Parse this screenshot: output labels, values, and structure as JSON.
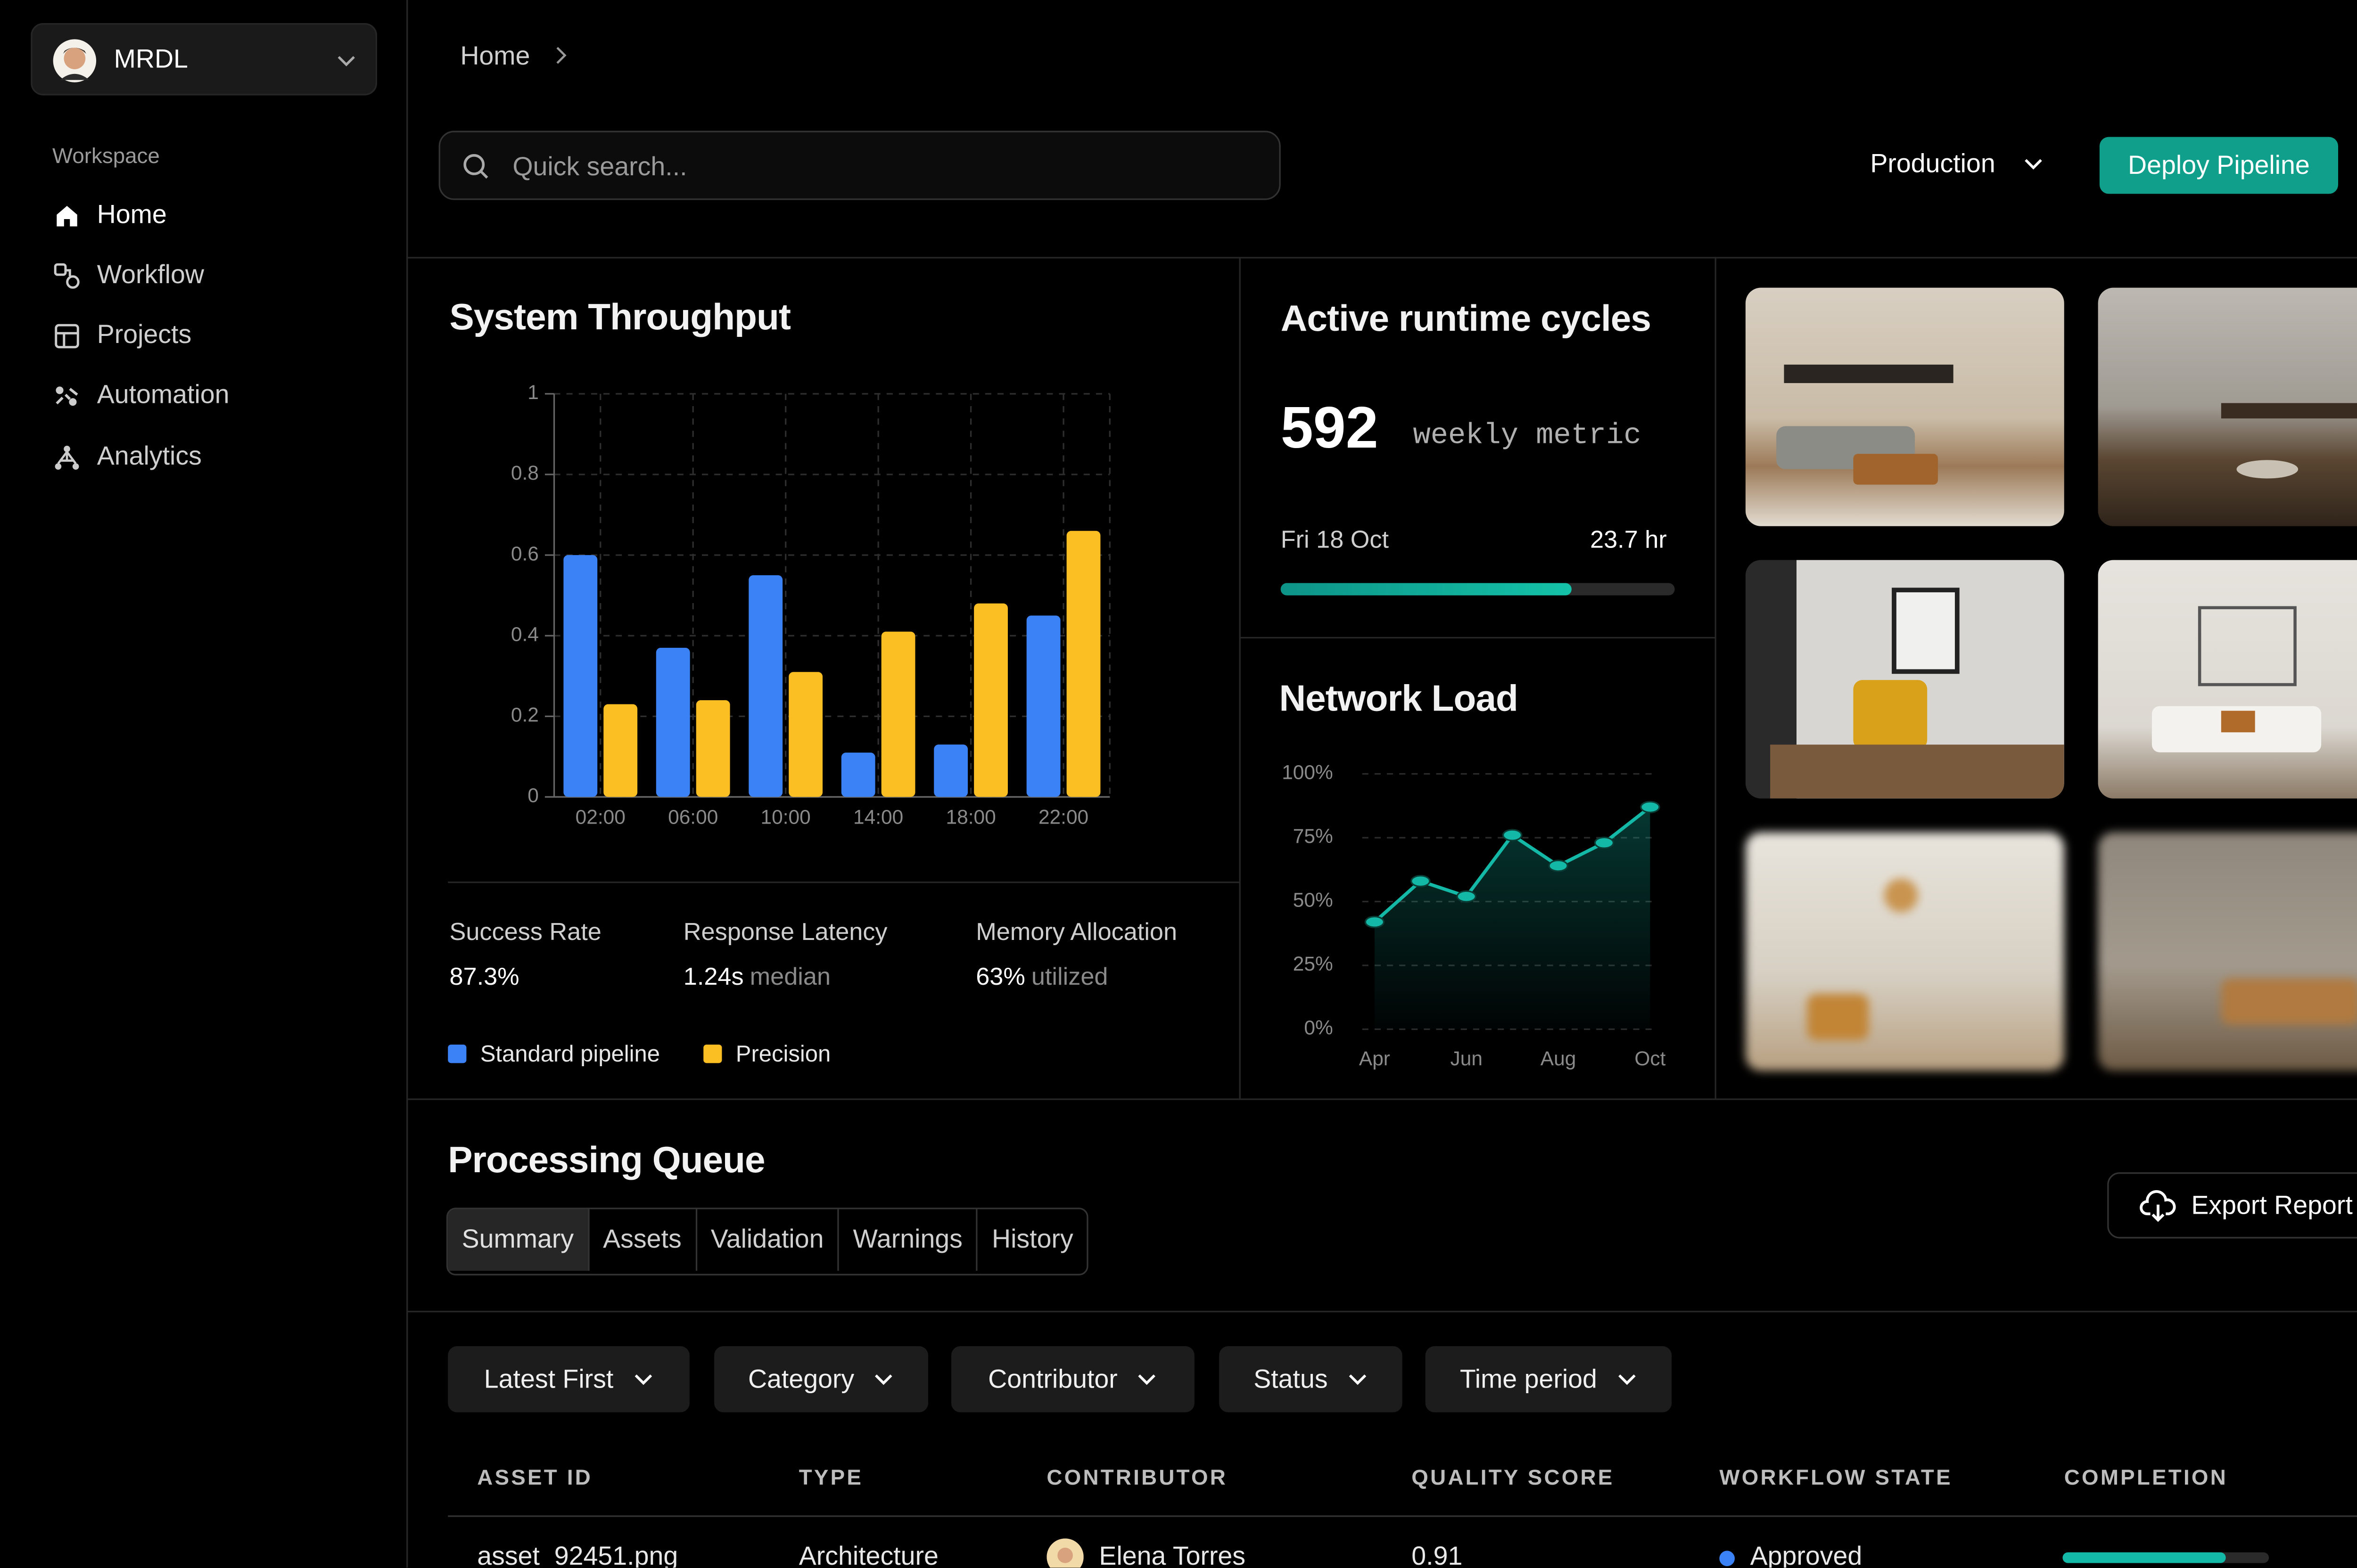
{
  "sidebar": {
    "account": "MRDL",
    "section": "Workspace",
    "nav": [
      "Home",
      "Workflow",
      "Projects",
      "Automation",
      "Analytics"
    ]
  },
  "header": {
    "breadcrumb": "Home",
    "search_placeholder": "Quick search...",
    "environment": "Production",
    "deploy_button": "Deploy Pipeline"
  },
  "throughput": {
    "stats": [
      {
        "label": "Success Rate",
        "value": "87.3%"
      },
      {
        "label": "Response Latency",
        "value": "1.24s",
        "unit": "median"
      },
      {
        "label": "Memory Allocation",
        "value": "63%",
        "unit": "utilized"
      }
    ]
  },
  "runtime": {
    "title": "Active runtime cycles",
    "value": 592,
    "caption": "weekly metric",
    "date": "Fri 18 Oct",
    "hours": "23.7 hr",
    "progress": 74
  },
  "chart_data": [
    {
      "type": "bar",
      "title": "System Throughput",
      "categories": [
        "02:00",
        "06:00",
        "10:00",
        "14:00",
        "18:00",
        "22:00"
      ],
      "series": [
        {
          "name": "Standard pipeline",
          "color": "#3b82f6",
          "values": [
            0.6,
            0.37,
            0.55,
            0.11,
            0.13,
            0.45
          ]
        },
        {
          "name": "Precision",
          "color": "#fbbf24",
          "values": [
            0.23,
            0.24,
            0.31,
            0.41,
            0.48,
            0.66
          ]
        }
      ],
      "ylim": [
        0,
        1
      ],
      "yticks": [
        0,
        0.2,
        0.4,
        0.6,
        0.8,
        1
      ],
      "grid": true
    },
    {
      "type": "line",
      "title": "Network Load",
      "categories": [
        "Apr",
        null,
        "Jun",
        null,
        "Aug",
        null,
        "Oct"
      ],
      "series": [
        {
          "color": "#14b8a6",
          "values": [
            42,
            58,
            52,
            76,
            64,
            73,
            87
          ]
        }
      ],
      "ylim": [
        0,
        100
      ],
      "yticks": [
        {
          "value": 0,
          "label": "0%"
        },
        {
          "value": 25,
          "label": "25%"
        },
        {
          "value": 50,
          "label": "50%"
        },
        {
          "value": 75,
          "label": "75%"
        },
        {
          "value": 100,
          "label": "100%"
        }
      ],
      "grid": true
    }
  ],
  "queue": {
    "title": "Processing Queue",
    "tabs": [
      "Summary",
      "Assets",
      "Validation",
      "Warnings",
      "History"
    ],
    "export": "Export Report",
    "filters": [
      "Latest First",
      "Category",
      "Contributor",
      "Status",
      "Time period"
    ],
    "columns": [
      "ASSET ID",
      "TYPE",
      "CONTRIBUTOR",
      "QUALITY SCORE",
      "WORKFLOW STATE",
      "COMPLETION"
    ],
    "rows": [
      {
        "asset": "asset_92451.png",
        "type": "Architecture",
        "contributor": "Elena Torres",
        "score": 0.91,
        "state": "Approved",
        "completion": 79
      }
    ]
  }
}
